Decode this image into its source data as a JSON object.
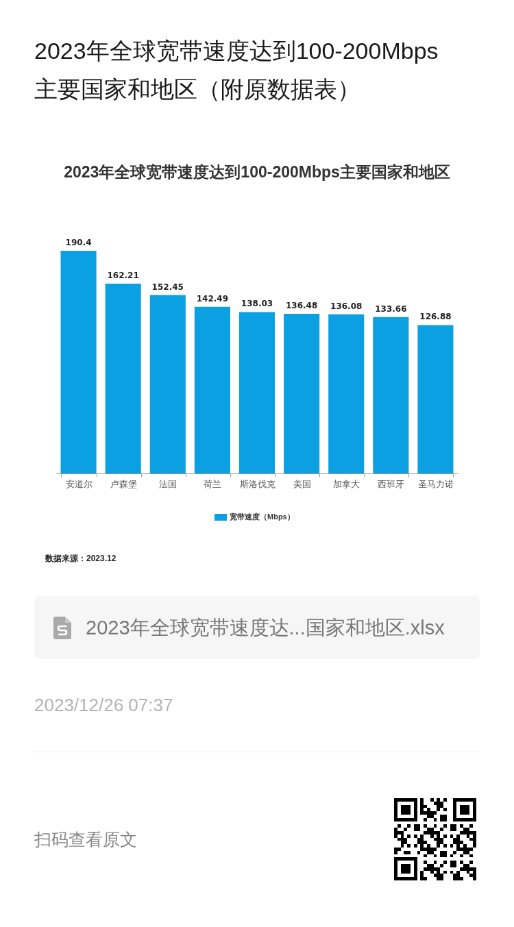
{
  "chart_data": {
    "type": "bar",
    "title": "2023年全球宽带速度达到100-200Mbps主要国家和地区（附原数据表）",
    "subtitle": "2023年全球宽带速度达到100-200Mbps主要国家和地区",
    "categories": [
      "安道尔",
      "卢森堡",
      "法国",
      "荷兰",
      "斯洛伐克",
      "美国",
      "加拿大",
      "西班牙",
      "圣马力诺"
    ],
    "series": [
      {
        "name": "宽带速度（Mbps）",
        "color": "#0aa0e2",
        "values": [
          190.4,
          162.21,
          152.45,
          142.49,
          138.03,
          136.48,
          136.08,
          133.66,
          126.88
        ]
      }
    ],
    "data_labels": true,
    "legend": "bottom",
    "annotations": [
      "数据来源：2023.12",
      "2023年全球宽带速度达...国家和地区.xlsx",
      "2023/12/26 07:37",
      "扫码查看原文"
    ]
  }
}
